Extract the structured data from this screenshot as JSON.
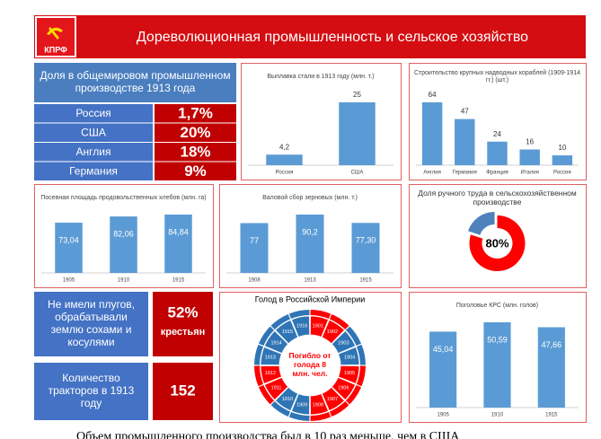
{
  "header": {
    "logo": "КПРФ",
    "title": "Дореволюционная промышленность и сельское хозяйство"
  },
  "share_table": {
    "title": "Доля в общемировом промышленном производстве 1913 года",
    "rows": [
      [
        "Россия",
        "1,7%"
      ],
      [
        "США",
        "20%"
      ],
      [
        "Англия",
        "18%"
      ],
      [
        "Германия",
        "9%"
      ]
    ]
  },
  "cards": [
    {
      "text": "Не имели плугов, обрабатывали землю сохами и косулями",
      "value": "52%",
      "unit": "крестьян"
    },
    {
      "text": "Количество тракторов в 1913 году",
      "value": "152"
    }
  ],
  "chart_data": [
    {
      "type": "bar",
      "title": "Выплавка стали в 1913 году (млн. т.)",
      "categories": [
        "Россия",
        "США"
      ],
      "values": [
        4.2,
        25
      ],
      "value_labels": [
        "4,2",
        "25"
      ],
      "color": "#5b9bd5",
      "label_position": "above"
    },
    {
      "type": "bar",
      "title": "Строительство крупных надводных кораблей (1909-1914 гг.) (шт.)",
      "categories": [
        "Англия",
        "Германия",
        "Франция",
        "Италия",
        "Россия"
      ],
      "values": [
        64,
        47,
        24,
        16,
        10
      ],
      "color": "#5b9bd5",
      "label_position": "above"
    },
    {
      "type": "bar",
      "title": "Посевная площадь продовольственных хлебов (млн. га)",
      "categories": [
        "1905",
        "1910",
        "1915"
      ],
      "values": [
        73.04,
        82.06,
        84.84
      ],
      "value_labels": [
        "73,04",
        "82,06",
        "84,84"
      ],
      "color": "#5b9bd5",
      "label_position": "inside"
    },
    {
      "type": "bar",
      "title": "Валовой сбор зерновых (млн. т.)",
      "categories": [
        "1908",
        "1913",
        "1915"
      ],
      "values": [
        77,
        90.2,
        77.3
      ],
      "value_labels": [
        "77",
        "90,2",
        "77,30"
      ],
      "color": "#5b9bd5",
      "label_position": "inside"
    },
    {
      "type": "pie",
      "title": "Доля ручного труда в сельскохозяйственном производстве",
      "values": [
        80
      ],
      "value_labels": [
        "80%"
      ],
      "color": "#ff0000",
      "rest_color": "#4f81bd"
    },
    {
      "type": "wheel",
      "title": "Голод в Российской Империи",
      "center_label": "Погибло от голода 8 млн. чел.",
      "categories": [
        "1901",
        "1902",
        "1903",
        "1904",
        "1905",
        "1906",
        "1907",
        "1908",
        "1909",
        "1910",
        "1911",
        "1912",
        "1913",
        "1914",
        "1915",
        "1916"
      ],
      "colors": [
        "#ff0000",
        "#ff0000",
        "#2f75b5",
        "#2f75b5",
        "#ff0000",
        "#ff0000",
        "#ff0000",
        "#ff0000",
        "#2f75b5",
        "#2f75b5",
        "#ff0000",
        "#ff0000",
        "#2f75b5",
        "#2f75b5",
        "#2f75b5",
        "#2f75b5"
      ]
    },
    {
      "type": "bar",
      "title": "Поголовье КРС (млн. голов)",
      "categories": [
        "1905",
        "1910",
        "1915"
      ],
      "values": [
        45.04,
        50.59,
        47.66
      ],
      "value_labels": [
        "45,04",
        "50,59",
        "47,66"
      ],
      "color": "#5b9bd5",
      "label_position": "inside"
    }
  ],
  "footer": "Объем промышленного производства был в 10 раз меньше, чем в США"
}
